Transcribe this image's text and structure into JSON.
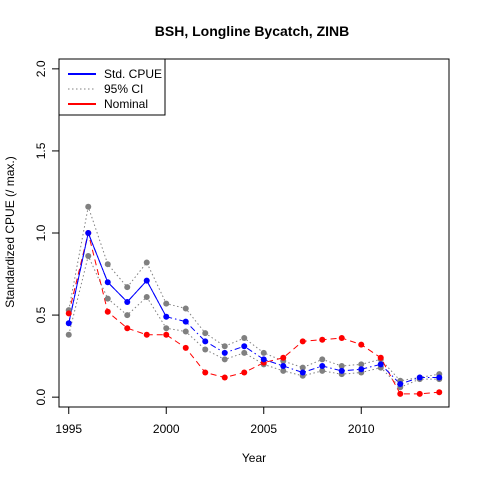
{
  "chart_data": {
    "type": "line",
    "title": "BSH, Longline Bycatch, ZINB",
    "xlabel": "Year",
    "ylabel": "Standardized CPUE (/ max.)",
    "xlim": [
      1994.5,
      2014.5
    ],
    "ylim": [
      -0.06,
      2.06
    ],
    "x_ticks": [
      1995,
      2000,
      2005,
      2010
    ],
    "y_ticks": [
      0.0,
      0.5,
      1.0,
      1.5,
      2.0
    ],
    "y_tick_labels": [
      "0.0",
      "0.5",
      "1.0",
      "1.5",
      "2.0"
    ],
    "grid": false,
    "legend_position": "top-left",
    "x": [
      1995,
      1996,
      1997,
      1998,
      1999,
      2000,
      2001,
      2002,
      2003,
      2004,
      2005,
      2006,
      2007,
      2008,
      2009,
      2010,
      2011,
      2012,
      2013,
      2014
    ],
    "series": [
      {
        "name": "Std. CPUE",
        "color": "#0000ff",
        "style": "solid",
        "values": [
          0.45,
          1.0,
          0.7,
          0.58,
          0.71,
          0.49,
          0.46,
          0.34,
          0.27,
          0.31,
          0.23,
          0.19,
          0.15,
          0.19,
          0.16,
          0.17,
          0.2,
          0.08,
          0.12,
          0.12
        ]
      },
      {
        "name": "95% CI",
        "color": "#808080",
        "style": "dotted",
        "lower": [
          0.38,
          0.86,
          0.6,
          0.5,
          0.61,
          0.42,
          0.4,
          0.29,
          0.23,
          0.27,
          0.2,
          0.16,
          0.13,
          0.16,
          0.14,
          0.15,
          0.18,
          0.06,
          0.11,
          0.11
        ],
        "upper": [
          0.53,
          1.16,
          0.81,
          0.67,
          0.82,
          0.57,
          0.54,
          0.39,
          0.31,
          0.36,
          0.27,
          0.22,
          0.18,
          0.23,
          0.19,
          0.2,
          0.23,
          0.1,
          0.12,
          0.14
        ]
      },
      {
        "name": "Nominal",
        "color": "#ff0000",
        "style": "dashed",
        "values": [
          0.51,
          1.0,
          0.52,
          0.42,
          0.38,
          0.38,
          0.3,
          0.15,
          0.12,
          0.15,
          0.21,
          0.24,
          0.34,
          0.35,
          0.36,
          0.32,
          0.24,
          0.02,
          0.02,
          0.03
        ]
      }
    ]
  }
}
